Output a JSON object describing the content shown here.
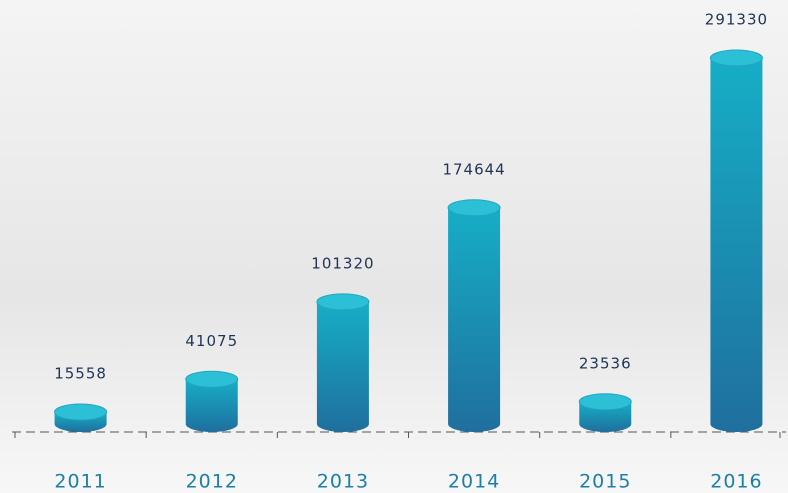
{
  "chart_data": {
    "type": "bar",
    "categories": [
      "2011",
      "2012",
      "2013",
      "2014",
      "2015",
      "2016"
    ],
    "values": [
      15558,
      41075,
      101320,
      174644,
      23536,
      291330
    ],
    "color": "#1a8fb8"
  }
}
